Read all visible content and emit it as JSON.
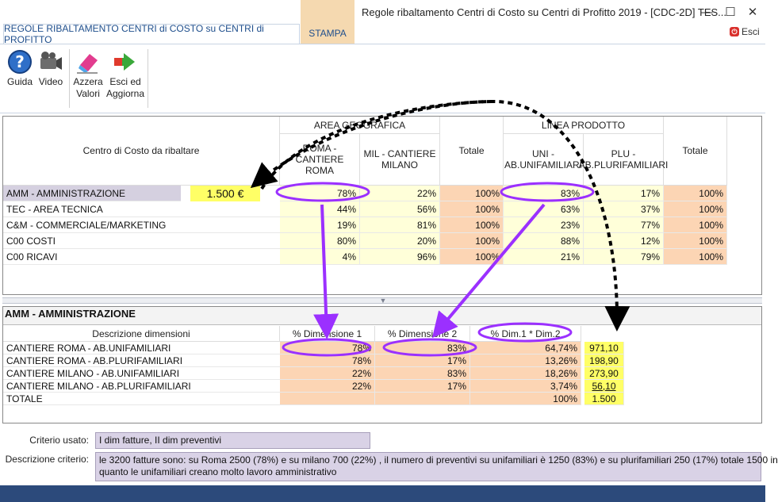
{
  "window": {
    "title": "Regole ribaltamento Centri di Costo su Centri di Profitto 2019 - [CDC-2D] TES...",
    "minimize": "—",
    "maximize": "☐",
    "close": "✕"
  },
  "ribbon": {
    "active_tab": "REGOLE RIBALTAMENTO CENTRI di COSTO su CENTRI di PROFITTO",
    "stampa_tab": "STAMPA",
    "esci": "Esci",
    "esci_icon": "exit-icon",
    "buttons": {
      "guida": "Guida",
      "video": "Video",
      "azzera_1": "Azzera",
      "azzera_2": "Valori",
      "esci_agg_1": "Esci ed",
      "esci_agg_2": "Aggiorna"
    }
  },
  "upper": {
    "centro_header": "Centro di Costo da ribaltare",
    "group_area": "AREA GEOGRAFICA",
    "group_linea": "LINEA PRODOTTO",
    "cols": [
      "ROMA - CANTIERE ROMA",
      "MIL - CANTIERE MILANO",
      "Totale",
      "UNI - AB.UNIFAMILIARI",
      "PLU - AB.PLURIFAMILIARI",
      "Totale"
    ],
    "amount": "1.500 €",
    "rows": [
      {
        "label": "AMM - AMMINISTRAZIONE",
        "v": [
          "78%",
          "22%",
          "100%",
          "83%",
          "17%",
          "100%"
        ]
      },
      {
        "label": "TEC - AREA TECNICA",
        "v": [
          "44%",
          "56%",
          "100%",
          "63%",
          "37%",
          "100%"
        ]
      },
      {
        "label": "C&M - COMMERCIALE/MARKETING",
        "v": [
          "19%",
          "81%",
          "100%",
          "23%",
          "77%",
          "100%"
        ]
      },
      {
        "label": "C00 COSTI",
        "v": [
          "80%",
          "20%",
          "100%",
          "88%",
          "12%",
          "100%"
        ]
      },
      {
        "label": "C00 RICAVI",
        "v": [
          "4%",
          "96%",
          "100%",
          "21%",
          "79%",
          "100%"
        ]
      }
    ]
  },
  "lower": {
    "title": "AMM - AMMINISTRAZIONE",
    "headers": [
      "Descrizione dimensioni",
      "% Dimensione 1",
      "% Dimensione 2",
      "% Dim.1 * Dim.2"
    ],
    "rows": [
      {
        "label": "CANTIERE ROMA - AB.UNIFAMILIARI",
        "d1": "78%",
        "d2": "83%",
        "p": "64,74%",
        "amt": "971,10"
      },
      {
        "label": "CANTIERE ROMA - AB.PLURIFAMILIARI",
        "d1": "78%",
        "d2": "17%",
        "p": "13,26%",
        "amt": "198,90"
      },
      {
        "label": "CANTIERE MILANO - AB.UNIFAMILIARI",
        "d1": "22%",
        "d2": "83%",
        "p": "18,26%",
        "amt": "273,90"
      },
      {
        "label": "CANTIERE MILANO - AB.PLURIFAMILIARI",
        "d1": "22%",
        "d2": "17%",
        "p": "3,74%",
        "amt": "56,10"
      },
      {
        "label": "TOTALE",
        "d1": "",
        "d2": "",
        "p": "100%",
        "amt": "1.500"
      }
    ]
  },
  "criteria": {
    "usato_label": "Criterio usato:",
    "usato_value": "I dim fatture, II dim preventivi",
    "descr_label": "Descrizione criterio:",
    "descr_line1": "le 3200 fatture sono: su Roma   2500 (78%) e su milano 700 (22%) , il numero di preventivi su unifamiliari è 1250 (83%) e su plurifamiliari 250 (17%) totale 1500 in",
    "descr_line2": "quanto le unifamiliari creano molto lavoro amministrativo"
  },
  "colors": {
    "yellow_cell": "#ffffd9",
    "orange_cell": "#fcd5b4",
    "highlight_yellow": "#ffff66",
    "annotation_purple": "#9b30ff",
    "status_bar": "#2c4a7b"
  }
}
